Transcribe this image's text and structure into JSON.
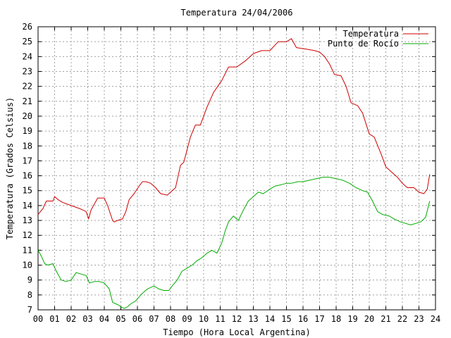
{
  "chart_data": {
    "type": "line",
    "title": "Temperatura 24/04/2006",
    "xlabel": "Tiempo (Hora Local Argentina)",
    "ylabel": "Temperatura (Grados Celsius)",
    "xlim": [
      0,
      24
    ],
    "ylim": [
      7,
      26
    ],
    "x_ticks": [
      "00",
      "01",
      "02",
      "03",
      "04",
      "05",
      "06",
      "07",
      "08",
      "09",
      "10",
      "11",
      "12",
      "13",
      "14",
      "15",
      "16",
      "17",
      "18",
      "19",
      "20",
      "21",
      "22",
      "23",
      "24"
    ],
    "y_ticks": [
      "7",
      "8",
      "9",
      "10",
      "11",
      "12",
      "13",
      "14",
      "15",
      "16",
      "17",
      "18",
      "19",
      "20",
      "21",
      "22",
      "23",
      "24",
      "25",
      "26"
    ],
    "grid": true,
    "legend_position": "top-right",
    "series": [
      {
        "name": "Temperatura",
        "color": "#cc0000",
        "x": [
          0,
          0.3,
          0.5,
          0.9,
          1.0,
          1.2,
          1.5,
          2.0,
          2.5,
          2.9,
          3.05,
          3.2,
          3.6,
          4.0,
          4.2,
          4.5,
          4.6,
          4.8,
          5.1,
          5.3,
          5.5,
          5.8,
          6.1,
          6.3,
          6.5,
          6.8,
          7.1,
          7.4,
          7.8,
          8.3,
          8.6,
          8.8,
          9.2,
          9.5,
          9.8,
          10.2,
          10.6,
          11.1,
          11.5,
          12.0,
          12.5,
          13.0,
          13.5,
          14.0,
          14.5,
          15.0,
          15.3,
          15.6,
          16.2,
          16.7,
          17.0,
          17.3,
          17.6,
          17.9,
          18.3,
          18.6,
          18.9,
          19.3,
          19.6,
          20.0,
          20.3,
          20.7,
          21.0,
          21.3,
          21.7,
          22.0,
          22.3,
          22.7,
          23.0,
          23.3,
          23.5,
          23.65
        ],
        "y": [
          13.4,
          13.8,
          14.3,
          14.3,
          14.6,
          14.4,
          14.2,
          14.0,
          13.8,
          13.6,
          13.1,
          13.7,
          14.5,
          14.5,
          14.0,
          13.0,
          12.9,
          13.0,
          13.1,
          13.6,
          14.4,
          14.8,
          15.3,
          15.6,
          15.6,
          15.5,
          15.2,
          14.8,
          14.7,
          15.2,
          16.7,
          16.9,
          18.6,
          19.4,
          19.4,
          20.6,
          21.6,
          22.4,
          23.3,
          23.3,
          23.7,
          24.2,
          24.4,
          24.4,
          25.0,
          25.0,
          25.2,
          24.6,
          24.5,
          24.4,
          24.3,
          24.0,
          23.5,
          22.8,
          22.7,
          22.0,
          20.9,
          20.7,
          20.2,
          18.8,
          18.6,
          17.5,
          16.6,
          16.3,
          15.9,
          15.5,
          15.2,
          15.2,
          14.9,
          14.8,
          15.1,
          16.1
        ]
      },
      {
        "name": "Punto de Rocío",
        "color": "#00aa00",
        "x": [
          0,
          0.2,
          0.4,
          0.6,
          0.9,
          1.1,
          1.4,
          1.7,
          2.0,
          2.3,
          2.6,
          2.9,
          3.1,
          3.4,
          3.7,
          4.0,
          4.3,
          4.5,
          4.7,
          4.9,
          5.0,
          5.2,
          5.4,
          5.6,
          5.9,
          6.2,
          6.6,
          7.0,
          7.3,
          7.6,
          7.9,
          8.1,
          8.4,
          8.7,
          9.0,
          9.3,
          9.6,
          9.9,
          10.2,
          10.5,
          10.8,
          11.1,
          11.3,
          11.5,
          11.8,
          12.1,
          12.4,
          12.7,
          13.0,
          13.3,
          13.6,
          14.0,
          14.3,
          14.7,
          15.0,
          15.3,
          15.7,
          16.0,
          16.4,
          16.8,
          17.2,
          17.6,
          18.0,
          18.4,
          18.8,
          19.2,
          19.6,
          19.9,
          20.2,
          20.5,
          20.8,
          21.2,
          21.5,
          21.9,
          22.2,
          22.5,
          22.8,
          23.1,
          23.4,
          23.65
        ],
        "y": [
          11.0,
          10.6,
          10.1,
          10.0,
          10.1,
          9.6,
          9.0,
          8.9,
          9.0,
          9.5,
          9.4,
          9.3,
          8.8,
          8.9,
          8.9,
          8.8,
          8.4,
          7.5,
          7.4,
          7.3,
          7.2,
          7.1,
          7.2,
          7.4,
          7.6,
          8.0,
          8.4,
          8.6,
          8.4,
          8.3,
          8.3,
          8.6,
          9.0,
          9.6,
          9.8,
          10.0,
          10.3,
          10.5,
          10.8,
          11.0,
          10.8,
          11.5,
          12.3,
          12.9,
          13.3,
          13.0,
          13.7,
          14.3,
          14.6,
          14.9,
          14.8,
          15.1,
          15.3,
          15.4,
          15.5,
          15.5,
          15.6,
          15.6,
          15.7,
          15.8,
          15.9,
          15.9,
          15.8,
          15.7,
          15.5,
          15.2,
          15.0,
          14.9,
          14.3,
          13.6,
          13.4,
          13.3,
          13.1,
          12.9,
          12.8,
          12.7,
          12.8,
          12.9,
          13.2,
          14.3
        ]
      }
    ]
  }
}
